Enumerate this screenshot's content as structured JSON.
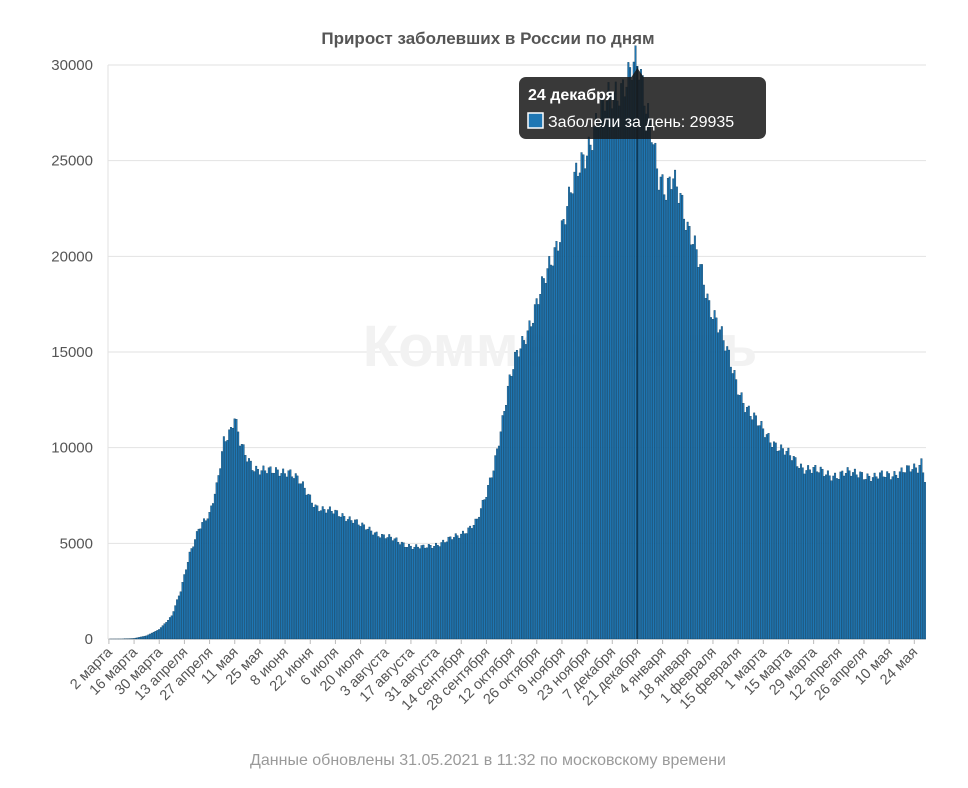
{
  "chart_data": {
    "type": "bar",
    "title": "Прирост заболевших в России по дням",
    "xlabel": "",
    "ylabel": "",
    "ylim": [
      0,
      30000
    ],
    "yticks": [
      0,
      5000,
      10000,
      15000,
      20000,
      25000,
      30000
    ],
    "grid": true,
    "bar_color": "#1f77b4",
    "bar_edge_color": "#0b3a5a",
    "x_tick_labels": [
      "2 марта",
      "16 марта",
      "30 марта",
      "13 апреля",
      "27 апреля",
      "11 мая",
      "25 мая",
      "8 июня",
      "22 июня",
      "6 июля",
      "20 июля",
      "3 августа",
      "17 августа",
      "31 августа",
      "14 сентября",
      "28 сентября",
      "12 октября",
      "26 октября",
      "9 ноября",
      "23 ноября",
      "7 декабря",
      "21 декабря",
      "4 января",
      "18 января",
      "1 февраля",
      "15 февраля",
      "1 марта",
      "15 марта",
      "29 марта",
      "12 апреля",
      "26 апреля",
      "10 мая",
      "24 мая"
    ],
    "series": [
      {
        "name": "Заболели за день",
        "keypoints": [
          [
            0,
            0
          ],
          [
            7,
            2
          ],
          [
            14,
            30
          ],
          [
            21,
            170
          ],
          [
            28,
            500
          ],
          [
            35,
            1200
          ],
          [
            40,
            2500
          ],
          [
            45,
            4500
          ],
          [
            50,
            5800
          ],
          [
            56,
            6400
          ],
          [
            60,
            8000
          ],
          [
            64,
            10500
          ],
          [
            68,
            10900
          ],
          [
            70,
            11500
          ],
          [
            73,
            10200
          ],
          [
            77,
            9500
          ],
          [
            81,
            9000
          ],
          [
            85,
            8800
          ],
          [
            90,
            8700
          ],
          [
            95,
            8800
          ],
          [
            100,
            8800
          ],
          [
            105,
            8300
          ],
          [
            110,
            7700
          ],
          [
            115,
            7000
          ],
          [
            120,
            6700
          ],
          [
            126,
            6600
          ],
          [
            130,
            6500
          ],
          [
            136,
            6200
          ],
          [
            140,
            5900
          ],
          [
            146,
            5700
          ],
          [
            152,
            5400
          ],
          [
            158,
            5200
          ],
          [
            164,
            5000
          ],
          [
            170,
            4800
          ],
          [
            175,
            4750
          ],
          [
            180,
            4900
          ],
          [
            185,
            5050
          ],
          [
            190,
            5200
          ],
          [
            195,
            5400
          ],
          [
            200,
            5800
          ],
          [
            205,
            6200
          ],
          [
            210,
            7500
          ],
          [
            214,
            9000
          ],
          [
            218,
            11000
          ],
          [
            222,
            13000
          ],
          [
            226,
            14500
          ],
          [
            230,
            15500
          ],
          [
            234,
            16500
          ],
          [
            238,
            17500
          ],
          [
            242,
            18500
          ],
          [
            246,
            19700
          ],
          [
            250,
            21000
          ],
          [
            254,
            22300
          ],
          [
            258,
            23500
          ],
          [
            262,
            24600
          ],
          [
            266,
            25700
          ],
          [
            270,
            26800
          ],
          [
            274,
            27500
          ],
          [
            278,
            28100
          ],
          [
            282,
            28700
          ],
          [
            286,
            29100
          ],
          [
            290,
            29500
          ],
          [
            294,
            29935
          ],
          [
            298,
            28500
          ],
          [
            302,
            27000
          ],
          [
            306,
            24000
          ],
          [
            310,
            23000
          ],
          [
            314,
            24200
          ],
          [
            318,
            23500
          ],
          [
            322,
            21500
          ],
          [
            326,
            20300
          ],
          [
            330,
            19000
          ],
          [
            334,
            17600
          ],
          [
            338,
            16800
          ],
          [
            342,
            15500
          ],
          [
            346,
            14300
          ],
          [
            350,
            13200
          ],
          [
            354,
            12300
          ],
          [
            358,
            11600
          ],
          [
            362,
            11100
          ],
          [
            366,
            10700
          ],
          [
            370,
            10300
          ],
          [
            374,
            9900
          ],
          [
            378,
            9600
          ],
          [
            382,
            9300
          ],
          [
            386,
            9000
          ],
          [
            390,
            8900
          ],
          [
            394,
            8750
          ],
          [
            398,
            8650
          ],
          [
            402,
            8600
          ],
          [
            406,
            8600
          ],
          [
            410,
            8650
          ],
          [
            414,
            8600
          ],
          [
            418,
            8700
          ],
          [
            422,
            8550
          ],
          [
            426,
            8400
          ],
          [
            430,
            8500
          ],
          [
            434,
            8600
          ],
          [
            438,
            8700
          ],
          [
            442,
            8800
          ],
          [
            446,
            8800
          ],
          [
            450,
            8900
          ],
          [
            452,
            9300
          ],
          [
            454,
            8500
          ]
        ]
      }
    ],
    "tooltip": {
      "date": "24 декабря",
      "label": "Заболели за день: 29935",
      "value": 29935
    },
    "watermark": "Коммерсантъ",
    "footer": "Данные обновлены 31.05.2021 в 11:32 по московскому времени"
  }
}
